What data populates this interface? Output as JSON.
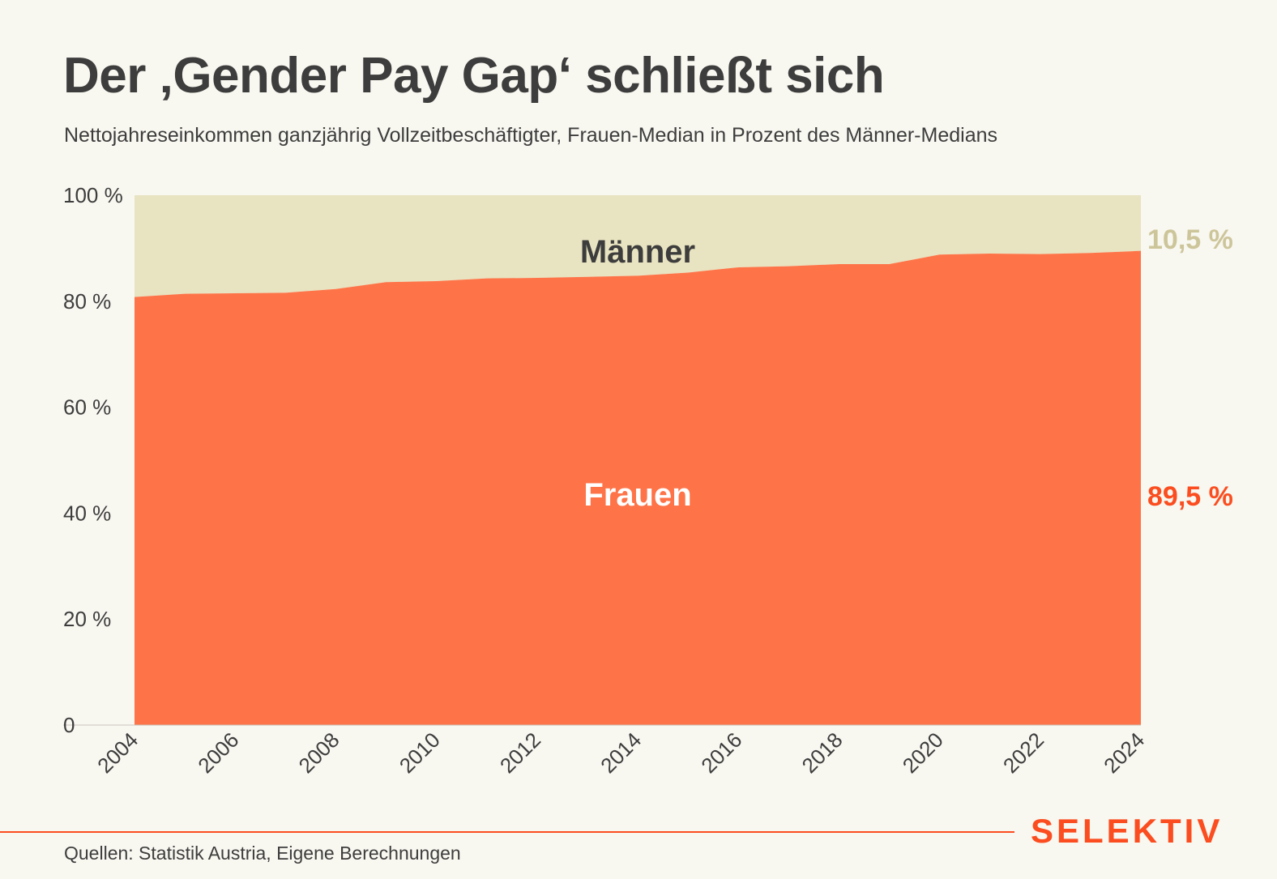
{
  "header": {
    "title": "Der ‚Gender Pay Gap‘ schließt sich",
    "subtitle": "Nettojahreseinkommen ganzjährig Vollzeitbeschäftigter, Frauen-Median in Prozent des Männer-Medians"
  },
  "chart_data": {
    "type": "area",
    "stacked": true,
    "x": [
      2004,
      2005,
      2006,
      2007,
      2008,
      2009,
      2010,
      2011,
      2012,
      2013,
      2014,
      2015,
      2016,
      2017,
      2018,
      2019,
      2020,
      2021,
      2022,
      2023,
      2024
    ],
    "series": [
      {
        "name": "Frauen",
        "label": "Frauen",
        "color": "#fe7448",
        "values": [
          80.8,
          81.4,
          81.5,
          81.6,
          82.3,
          83.6,
          83.8,
          84.3,
          84.4,
          84.6,
          84.8,
          85.4,
          86.4,
          86.6,
          87.0,
          87.0,
          88.8,
          89.0,
          88.9,
          89.1,
          89.5
        ]
      },
      {
        "name": "Männer",
        "label": "Männer",
        "color": "#e8e3c0",
        "values": [
          19.2,
          18.6,
          18.5,
          18.4,
          17.7,
          16.4,
          16.2,
          15.7,
          15.6,
          15.4,
          15.2,
          14.6,
          13.6,
          13.4,
          13.0,
          13.0,
          11.2,
          11.0,
          11.1,
          10.9,
          10.5
        ]
      }
    ],
    "ylim": [
      0,
      100
    ],
    "y_ticks": [
      0,
      20,
      40,
      60,
      80,
      100
    ],
    "y_tick_labels": [
      "0",
      "20 %",
      "40 %",
      "60 %",
      "80 %",
      "100 %"
    ],
    "x_ticks": [
      2004,
      2006,
      2008,
      2010,
      2012,
      2014,
      2016,
      2018,
      2020,
      2022,
      2024
    ],
    "x_tick_labels": [
      "2004",
      "2006",
      "2008",
      "2010",
      "2012",
      "2014",
      "2016",
      "2018",
      "2020",
      "2022",
      "2024"
    ],
    "end_labels": {
      "maenner": "10,5 %",
      "frauen": "89,5 %"
    },
    "colors": {
      "frauen_label": "#fb4d1f",
      "maenner_label": "#cdc59a",
      "axis_text": "#3d3d3d"
    },
    "grid": false
  },
  "footer": {
    "source": "Quellen: Statistik Austria, Eigene Berechnungen",
    "brand": "SELEKTIV"
  }
}
